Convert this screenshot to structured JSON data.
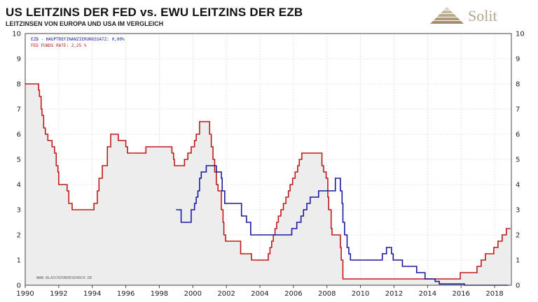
{
  "header": {
    "title": "US LEITZINS DER FED vs. EWU LEITZINS DER EZB",
    "subtitle": "LEITZINSEN VON EUROPA UND USA IM VERGLEICH"
  },
  "logo": {
    "text": "Solit",
    "color": "#b5a48c"
  },
  "chart_data": {
    "type": "line",
    "title": "US LEITZINS DER FED vs. EWU LEITZINS DER EZB",
    "subtitle": "LEITZINSEN VON EUROPA UND USA IM VERGLEICH",
    "xlim": [
      1990,
      2019
    ],
    "ylim": [
      0,
      10
    ],
    "x_ticks": [
      "1990",
      "1992",
      "1994",
      "1996",
      "1998",
      "2000",
      "2002",
      "2004",
      "2006",
      "2008",
      "2010",
      "2012",
      "2014",
      "2016",
      "2018"
    ],
    "y_ticks": [
      "0",
      "1",
      "2",
      "3",
      "4",
      "5",
      "6",
      "7",
      "8",
      "9",
      "10"
    ],
    "grid": true,
    "legend_position": "top-left",
    "watermark": "WWW.BLASCHZOKRESEARCH.DE",
    "series": [
      {
        "name": "EZB - HAUPTREFINANZIERUNGSSATZ: 0,00%",
        "color": "#1a1a9c",
        "step": true,
        "points": [
          [
            1999.0,
            3.0
          ],
          [
            1999.3,
            2.5
          ],
          [
            1999.9,
            3.0
          ],
          [
            2000.1,
            3.25
          ],
          [
            2000.2,
            3.5
          ],
          [
            2000.3,
            3.75
          ],
          [
            2000.4,
            4.25
          ],
          [
            2000.5,
            4.5
          ],
          [
            2000.8,
            4.75
          ],
          [
            2001.4,
            4.5
          ],
          [
            2001.7,
            4.25
          ],
          [
            2001.75,
            3.75
          ],
          [
            2001.9,
            3.25
          ],
          [
            2002.9,
            2.75
          ],
          [
            2003.2,
            2.5
          ],
          [
            2003.45,
            2.0
          ],
          [
            2005.9,
            2.25
          ],
          [
            2006.2,
            2.5
          ],
          [
            2006.45,
            2.75
          ],
          [
            2006.6,
            3.0
          ],
          [
            2006.8,
            3.25
          ],
          [
            2007.0,
            3.5
          ],
          [
            2007.5,
            3.75
          ],
          [
            2008.5,
            4.25
          ],
          [
            2008.8,
            3.75
          ],
          [
            2008.9,
            3.25
          ],
          [
            2008.95,
            2.5
          ],
          [
            2009.05,
            2.0
          ],
          [
            2009.2,
            1.5
          ],
          [
            2009.3,
            1.25
          ],
          [
            2009.4,
            1.0
          ],
          [
            2011.3,
            1.25
          ],
          [
            2011.55,
            1.5
          ],
          [
            2011.85,
            1.25
          ],
          [
            2011.95,
            1.0
          ],
          [
            2012.5,
            0.75
          ],
          [
            2013.35,
            0.5
          ],
          [
            2013.85,
            0.25
          ],
          [
            2014.45,
            0.15
          ],
          [
            2014.7,
            0.05
          ],
          [
            2015.0,
            0.05
          ],
          [
            2016.2,
            0.0
          ],
          [
            2018.8,
            0.0
          ]
        ]
      },
      {
        "name": "FED FUNDS RATE: 2,25 %",
        "color": "#c01818",
        "step": true,
        "fill": "#ededed",
        "points": [
          [
            1990.0,
            8.0
          ],
          [
            1990.8,
            7.75
          ],
          [
            1990.85,
            7.5
          ],
          [
            1990.95,
            7.0
          ],
          [
            1991.0,
            6.75
          ],
          [
            1991.1,
            6.25
          ],
          [
            1991.2,
            6.0
          ],
          [
            1991.35,
            5.75
          ],
          [
            1991.6,
            5.5
          ],
          [
            1991.75,
            5.25
          ],
          [
            1991.85,
            4.75
          ],
          [
            1991.95,
            4.5
          ],
          [
            1992.0,
            4.0
          ],
          [
            1992.5,
            3.75
          ],
          [
            1992.6,
            3.25
          ],
          [
            1992.8,
            3.0
          ],
          [
            1994.1,
            3.25
          ],
          [
            1994.3,
            3.75
          ],
          [
            1994.4,
            4.25
          ],
          [
            1994.6,
            4.75
          ],
          [
            1994.9,
            5.5
          ],
          [
            1995.1,
            6.0
          ],
          [
            1995.55,
            5.75
          ],
          [
            1996.0,
            5.5
          ],
          [
            1996.1,
            5.25
          ],
          [
            1997.2,
            5.5
          ],
          [
            1998.75,
            5.25
          ],
          [
            1998.85,
            5.0
          ],
          [
            1998.9,
            4.75
          ],
          [
            1999.5,
            5.0
          ],
          [
            1999.7,
            5.25
          ],
          [
            1999.9,
            5.5
          ],
          [
            2000.1,
            5.75
          ],
          [
            2000.2,
            6.0
          ],
          [
            2000.4,
            6.5
          ],
          [
            2001.0,
            6.0
          ],
          [
            2001.1,
            5.5
          ],
          [
            2001.2,
            5.0
          ],
          [
            2001.3,
            4.5
          ],
          [
            2001.4,
            4.0
          ],
          [
            2001.5,
            3.75
          ],
          [
            2001.7,
            3.0
          ],
          [
            2001.8,
            2.5
          ],
          [
            2001.85,
            2.0
          ],
          [
            2001.95,
            1.75
          ],
          [
            2002.85,
            1.25
          ],
          [
            2003.5,
            1.0
          ],
          [
            2004.5,
            1.25
          ],
          [
            2004.6,
            1.5
          ],
          [
            2004.7,
            1.75
          ],
          [
            2004.8,
            2.0
          ],
          [
            2004.9,
            2.25
          ],
          [
            2005.0,
            2.5
          ],
          [
            2005.1,
            2.75
          ],
          [
            2005.25,
            3.0
          ],
          [
            2005.4,
            3.25
          ],
          [
            2005.55,
            3.5
          ],
          [
            2005.7,
            3.75
          ],
          [
            2005.8,
            4.0
          ],
          [
            2005.95,
            4.25
          ],
          [
            2006.1,
            4.5
          ],
          [
            2006.25,
            4.75
          ],
          [
            2006.35,
            5.0
          ],
          [
            2006.5,
            5.25
          ],
          [
            2007.7,
            4.75
          ],
          [
            2007.8,
            4.5
          ],
          [
            2007.95,
            4.25
          ],
          [
            2008.05,
            3.5
          ],
          [
            2008.1,
            3.0
          ],
          [
            2008.25,
            2.25
          ],
          [
            2008.3,
            2.0
          ],
          [
            2008.8,
            1.5
          ],
          [
            2008.85,
            1.0
          ],
          [
            2008.95,
            0.25
          ],
          [
            2015.95,
            0.5
          ],
          [
            2016.95,
            0.75
          ],
          [
            2017.2,
            1.0
          ],
          [
            2017.45,
            1.25
          ],
          [
            2017.95,
            1.5
          ],
          [
            2018.2,
            1.75
          ],
          [
            2018.45,
            2.0
          ],
          [
            2018.7,
            2.25
          ],
          [
            2018.95,
            2.25
          ]
        ]
      }
    ]
  }
}
